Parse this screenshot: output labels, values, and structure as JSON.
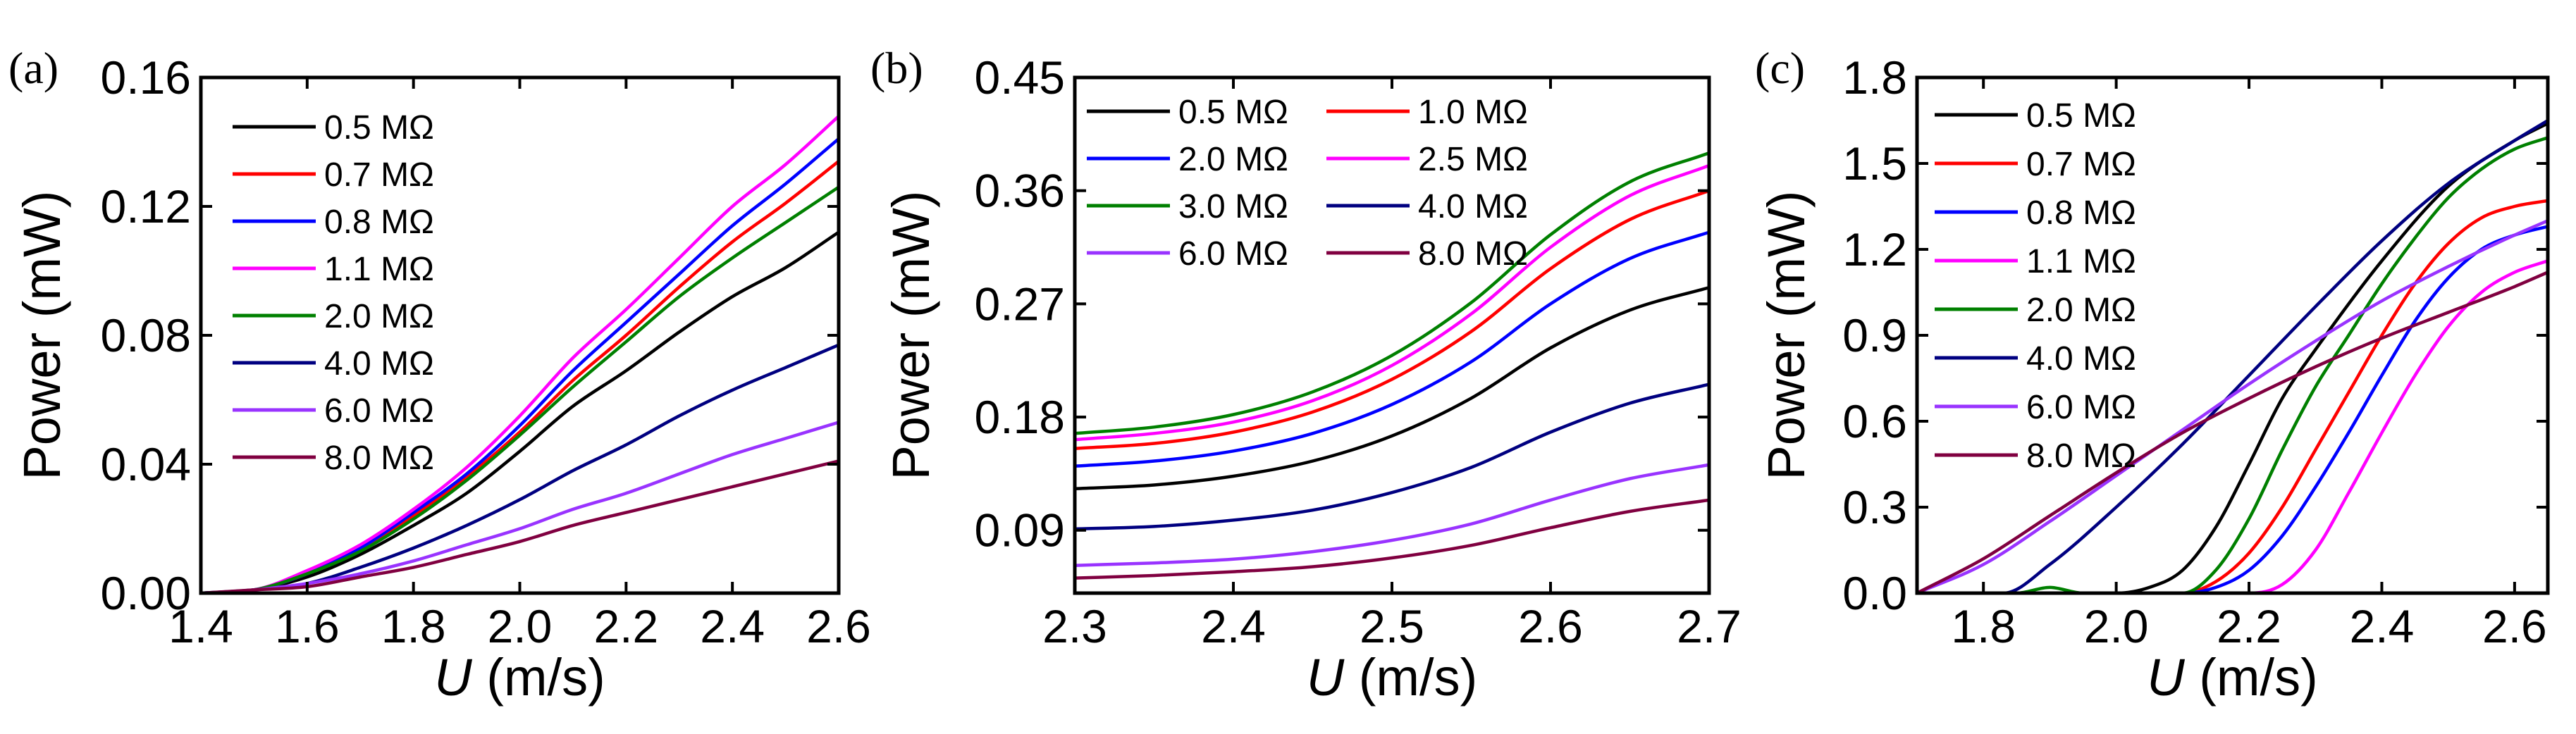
{
  "chart_data": [
    {
      "type": "line",
      "panel_label": "(a)",
      "xlabel_italic": "U",
      "xlabel_unit": "(m/s)",
      "ylabel": "Power (mW)",
      "xlim": [
        1.4,
        2.6
      ],
      "ylim": [
        0.0,
        0.16
      ],
      "x_ticks": [
        "1.4",
        "1.6",
        "1.8",
        "2.0",
        "2.2",
        "2.4",
        "2.6"
      ],
      "y_ticks": [
        "0.00",
        "0.04",
        "0.08",
        "0.12",
        "0.16"
      ],
      "legend_position": "top-left",
      "legend_columns": 1,
      "series": [
        {
          "name": "0.5 MΩ",
          "color": "#000000",
          "x": [
            1.4,
            1.5,
            1.6,
            1.7,
            1.8,
            1.9,
            2.0,
            2.1,
            2.2,
            2.3,
            2.4,
            2.5,
            2.6
          ],
          "values": [
            0.0,
            0.001,
            0.005,
            0.012,
            0.021,
            0.031,
            0.044,
            0.058,
            0.069,
            0.081,
            0.092,
            0.101,
            0.112
          ]
        },
        {
          "name": "0.7 MΩ",
          "color": "#ff0000",
          "x": [
            1.4,
            1.5,
            1.6,
            1.7,
            1.8,
            1.9,
            2.0,
            2.1,
            2.2,
            2.3,
            2.4,
            2.5,
            2.6
          ],
          "values": [
            0.0,
            0.001,
            0.006,
            0.014,
            0.024,
            0.036,
            0.05,
            0.066,
            0.08,
            0.095,
            0.109,
            0.121,
            0.134
          ]
        },
        {
          "name": "0.8 MΩ",
          "color": "#0000ff",
          "x": [
            1.4,
            1.5,
            1.6,
            1.7,
            1.8,
            1.9,
            2.0,
            2.1,
            2.2,
            2.3,
            2.4,
            2.5,
            2.6
          ],
          "values": [
            0.0,
            0.001,
            0.006,
            0.014,
            0.025,
            0.037,
            0.052,
            0.069,
            0.084,
            0.099,
            0.114,
            0.127,
            0.141
          ]
        },
        {
          "name": "1.1 MΩ",
          "color": "#ff00ff",
          "x": [
            1.4,
            1.5,
            1.6,
            1.7,
            1.8,
            1.9,
            2.0,
            2.1,
            2.2,
            2.3,
            2.4,
            2.5,
            2.6
          ],
          "values": [
            0.0,
            0.001,
            0.007,
            0.015,
            0.026,
            0.039,
            0.055,
            0.073,
            0.088,
            0.104,
            0.12,
            0.133,
            0.148
          ]
        },
        {
          "name": "2.0 MΩ",
          "color": "#008000",
          "x": [
            1.4,
            1.5,
            1.6,
            1.7,
            1.8,
            1.9,
            2.0,
            2.1,
            2.2,
            2.3,
            2.4,
            2.5,
            2.6
          ],
          "values": [
            0.0,
            0.001,
            0.006,
            0.013,
            0.023,
            0.035,
            0.049,
            0.064,
            0.078,
            0.092,
            0.104,
            0.115,
            0.126
          ]
        },
        {
          "name": "4.0 MΩ",
          "color": "#000080",
          "x": [
            1.4,
            1.5,
            1.6,
            1.7,
            1.8,
            1.9,
            2.0,
            2.1,
            2.2,
            2.3,
            2.4,
            2.5,
            2.6
          ],
          "values": [
            0.0,
            0.001,
            0.003,
            0.008,
            0.014,
            0.021,
            0.029,
            0.038,
            0.046,
            0.055,
            0.063,
            0.07,
            0.077
          ]
        },
        {
          "name": "6.0 MΩ",
          "color": "#9933ff",
          "x": [
            1.4,
            1.5,
            1.6,
            1.7,
            1.8,
            1.9,
            2.0,
            2.1,
            2.2,
            2.3,
            2.4,
            2.5,
            2.6
          ],
          "values": [
            0.0,
            0.001,
            0.003,
            0.006,
            0.01,
            0.015,
            0.02,
            0.026,
            0.031,
            0.037,
            0.043,
            0.048,
            0.053
          ]
        },
        {
          "name": "8.0 MΩ",
          "color": "#800040",
          "x": [
            1.4,
            1.5,
            1.6,
            1.7,
            1.8,
            1.9,
            2.0,
            2.1,
            2.2,
            2.3,
            2.4,
            2.5,
            2.6
          ],
          "values": [
            0.0,
            0.001,
            0.002,
            0.005,
            0.008,
            0.012,
            0.016,
            0.021,
            0.025,
            0.029,
            0.033,
            0.037,
            0.041
          ]
        }
      ]
    },
    {
      "type": "line",
      "panel_label": "(b)",
      "xlabel_italic": "U",
      "xlabel_unit": "(m/s)",
      "ylabel": "Power (mW)",
      "xlim": [
        2.3,
        2.7
      ],
      "ylim": [
        0.04,
        0.45
      ],
      "x_ticks": [
        "2.3",
        "2.4",
        "2.5",
        "2.6",
        "2.7"
      ],
      "y_ticks": [
        "0.09",
        "0.18",
        "0.27",
        "0.36",
        "0.45"
      ],
      "legend_position": "top-left",
      "legend_columns": 2,
      "series": [
        {
          "name": "0.5 MΩ",
          "color": "#000000",
          "x": [
            2.3,
            2.35,
            2.4,
            2.45,
            2.5,
            2.55,
            2.6,
            2.65,
            2.7
          ],
          "values": [
            0.123,
            0.126,
            0.133,
            0.145,
            0.165,
            0.195,
            0.235,
            0.265,
            0.283
          ]
        },
        {
          "name": "1.0 MΩ",
          "color": "#ff0000",
          "x": [
            2.3,
            2.35,
            2.4,
            2.45,
            2.5,
            2.55,
            2.6,
            2.65,
            2.7
          ],
          "values": [
            0.155,
            0.159,
            0.168,
            0.184,
            0.21,
            0.248,
            0.298,
            0.337,
            0.36
          ]
        },
        {
          "name": "2.0 MΩ",
          "color": "#0000ff",
          "x": [
            2.3,
            2.35,
            2.4,
            2.45,
            2.5,
            2.55,
            2.6,
            2.65,
            2.7
          ],
          "values": [
            0.141,
            0.145,
            0.153,
            0.167,
            0.19,
            0.224,
            0.27,
            0.306,
            0.327
          ]
        },
        {
          "name": "2.5 MΩ",
          "color": "#ff00ff",
          "x": [
            2.3,
            2.35,
            2.4,
            2.45,
            2.5,
            2.55,
            2.6,
            2.65,
            2.7
          ],
          "values": [
            0.162,
            0.167,
            0.176,
            0.193,
            0.221,
            0.262,
            0.315,
            0.356,
            0.38
          ]
        },
        {
          "name": "3.0 MΩ",
          "color": "#008000",
          "x": [
            2.3,
            2.35,
            2.4,
            2.45,
            2.5,
            2.55,
            2.6,
            2.65,
            2.7
          ],
          "values": [
            0.167,
            0.172,
            0.182,
            0.2,
            0.229,
            0.271,
            0.325,
            0.367,
            0.39
          ]
        },
        {
          "name": "4.0 MΩ",
          "color": "#000080",
          "x": [
            2.3,
            2.35,
            2.4,
            2.45,
            2.5,
            2.55,
            2.6,
            2.65,
            2.7
          ],
          "values": [
            0.091,
            0.093,
            0.098,
            0.106,
            0.12,
            0.14,
            0.168,
            0.191,
            0.206
          ]
        },
        {
          "name": "6.0 MΩ",
          "color": "#9933ff",
          "x": [
            2.3,
            2.35,
            2.4,
            2.45,
            2.5,
            2.55,
            2.6,
            2.65,
            2.7
          ],
          "values": [
            0.062,
            0.064,
            0.067,
            0.073,
            0.082,
            0.095,
            0.114,
            0.131,
            0.142
          ]
        },
        {
          "name": "8.0 MΩ",
          "color": "#800040",
          "x": [
            2.3,
            2.35,
            2.4,
            2.45,
            2.5,
            2.55,
            2.6,
            2.65,
            2.7
          ],
          "values": [
            0.052,
            0.054,
            0.057,
            0.061,
            0.068,
            0.078,
            0.092,
            0.105,
            0.114
          ]
        }
      ]
    },
    {
      "type": "line",
      "panel_label": "(c)",
      "xlabel_italic": "U",
      "xlabel_unit": "(m/s)",
      "ylabel": "Power (mW)",
      "xlim": [
        1.7,
        2.65
      ],
      "ylim": [
        0.0,
        1.8
      ],
      "x_ticks": [
        "1.8",
        "2.0",
        "2.2",
        "2.4",
        "2.6"
      ],
      "y_ticks": [
        "0.0",
        "0.3",
        "0.6",
        "0.9",
        "1.2",
        "1.5",
        "1.8"
      ],
      "legend_position": "top-left",
      "legend_columns": 1,
      "series": [
        {
          "name": "0.5 MΩ",
          "color": "#000000",
          "x": [
            1.7,
            1.8,
            1.9,
            2.0,
            2.05,
            2.1,
            2.15,
            2.2,
            2.25,
            2.3,
            2.4,
            2.5,
            2.6,
            2.65
          ],
          "values": [
            0,
            0,
            0,
            0.0,
            0.02,
            0.08,
            0.23,
            0.45,
            0.68,
            0.85,
            1.16,
            1.42,
            1.58,
            1.64
          ]
        },
        {
          "name": "0.7 MΩ",
          "color": "#ff0000",
          "x": [
            1.7,
            1.8,
            1.9,
            2.0,
            2.1,
            2.15,
            2.2,
            2.25,
            2.3,
            2.35,
            2.4,
            2.45,
            2.5,
            2.55,
            2.6,
            2.65
          ],
          "values": [
            0,
            0,
            0,
            0,
            0.0,
            0.04,
            0.14,
            0.3,
            0.5,
            0.7,
            0.9,
            1.08,
            1.22,
            1.31,
            1.35,
            1.37
          ]
        },
        {
          "name": "0.8 MΩ",
          "color": "#0000ff",
          "x": [
            1.7,
            1.8,
            1.9,
            2.0,
            2.1,
            2.15,
            2.2,
            2.25,
            2.3,
            2.35,
            2.4,
            2.45,
            2.5,
            2.55,
            2.6,
            2.65
          ],
          "values": [
            0,
            0,
            0,
            0,
            0.0,
            0.02,
            0.08,
            0.2,
            0.37,
            0.56,
            0.76,
            0.95,
            1.1,
            1.2,
            1.25,
            1.28
          ]
        },
        {
          "name": "1.1 MΩ",
          "color": "#ff00ff",
          "x": [
            1.7,
            1.8,
            1.9,
            2.0,
            2.1,
            2.2,
            2.25,
            2.3,
            2.35,
            2.4,
            2.45,
            2.5,
            2.55,
            2.6,
            2.65
          ],
          "values": [
            0,
            0,
            0,
            0,
            0,
            0.0,
            0.03,
            0.15,
            0.35,
            0.56,
            0.76,
            0.93,
            1.05,
            1.12,
            1.16
          ]
        },
        {
          "name": "2.0 MΩ",
          "color": "#008000",
          "x": [
            1.7,
            1.8,
            1.85,
            1.9,
            1.95,
            2.0,
            2.1,
            2.15,
            2.2,
            2.25,
            2.3,
            2.35,
            2.4,
            2.45,
            2.5,
            2.55,
            2.6,
            2.65
          ],
          "values": [
            0,
            0,
            0.0,
            0.02,
            0.0,
            0,
            0.0,
            0.08,
            0.26,
            0.5,
            0.72,
            0.9,
            1.08,
            1.24,
            1.38,
            1.48,
            1.55,
            1.59
          ]
        },
        {
          "name": "4.0 MΩ",
          "color": "#000080",
          "x": [
            1.7,
            1.8,
            1.83,
            1.9,
            2.0,
            2.1,
            2.2,
            2.3,
            2.4,
            2.5,
            2.6,
            2.65
          ],
          "values": [
            0,
            0,
            0.0,
            0.1,
            0.3,
            0.52,
            0.76,
            1.0,
            1.23,
            1.43,
            1.58,
            1.65
          ]
        },
        {
          "name": "6.0 MΩ",
          "color": "#9933ff",
          "x": [
            1.7,
            1.8,
            1.9,
            2.0,
            2.1,
            2.2,
            2.3,
            2.4,
            2.5,
            2.6,
            2.65
          ],
          "values": [
            0.0,
            0.1,
            0.25,
            0.41,
            0.57,
            0.73,
            0.88,
            1.02,
            1.14,
            1.25,
            1.3
          ]
        },
        {
          "name": "8.0 MΩ",
          "color": "#800040",
          "x": [
            1.7,
            1.8,
            1.9,
            2.0,
            2.1,
            2.2,
            2.3,
            2.4,
            2.5,
            2.6,
            2.65
          ],
          "values": [
            0.0,
            0.12,
            0.27,
            0.42,
            0.56,
            0.68,
            0.79,
            0.89,
            0.98,
            1.07,
            1.12
          ]
        }
      ]
    }
  ]
}
